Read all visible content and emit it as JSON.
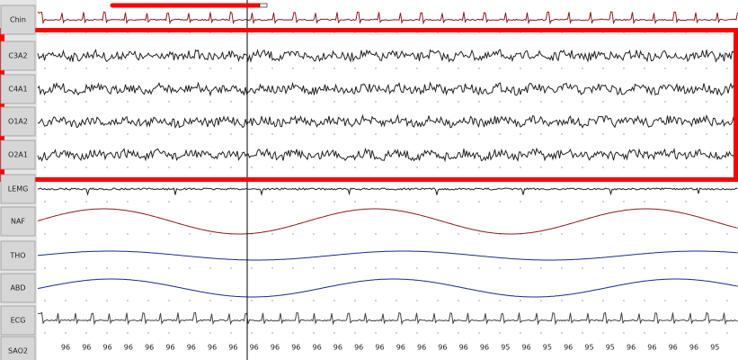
{
  "channels": [
    "Chin",
    "C3A2",
    "C4A1",
    "O1A2",
    "O2A1",
    "LEMG",
    "NAF",
    "THO",
    "ABD",
    "ECG",
    "SAO2"
  ],
  "sao2_values": [
    96,
    96,
    96,
    96,
    96,
    96,
    96,
    96,
    96,
    96,
    96,
    96,
    96,
    96,
    96,
    96,
    96,
    96,
    96,
    96,
    96,
    95,
    96,
    95,
    96,
    95,
    95,
    96,
    96,
    96,
    96,
    95
  ]
}
